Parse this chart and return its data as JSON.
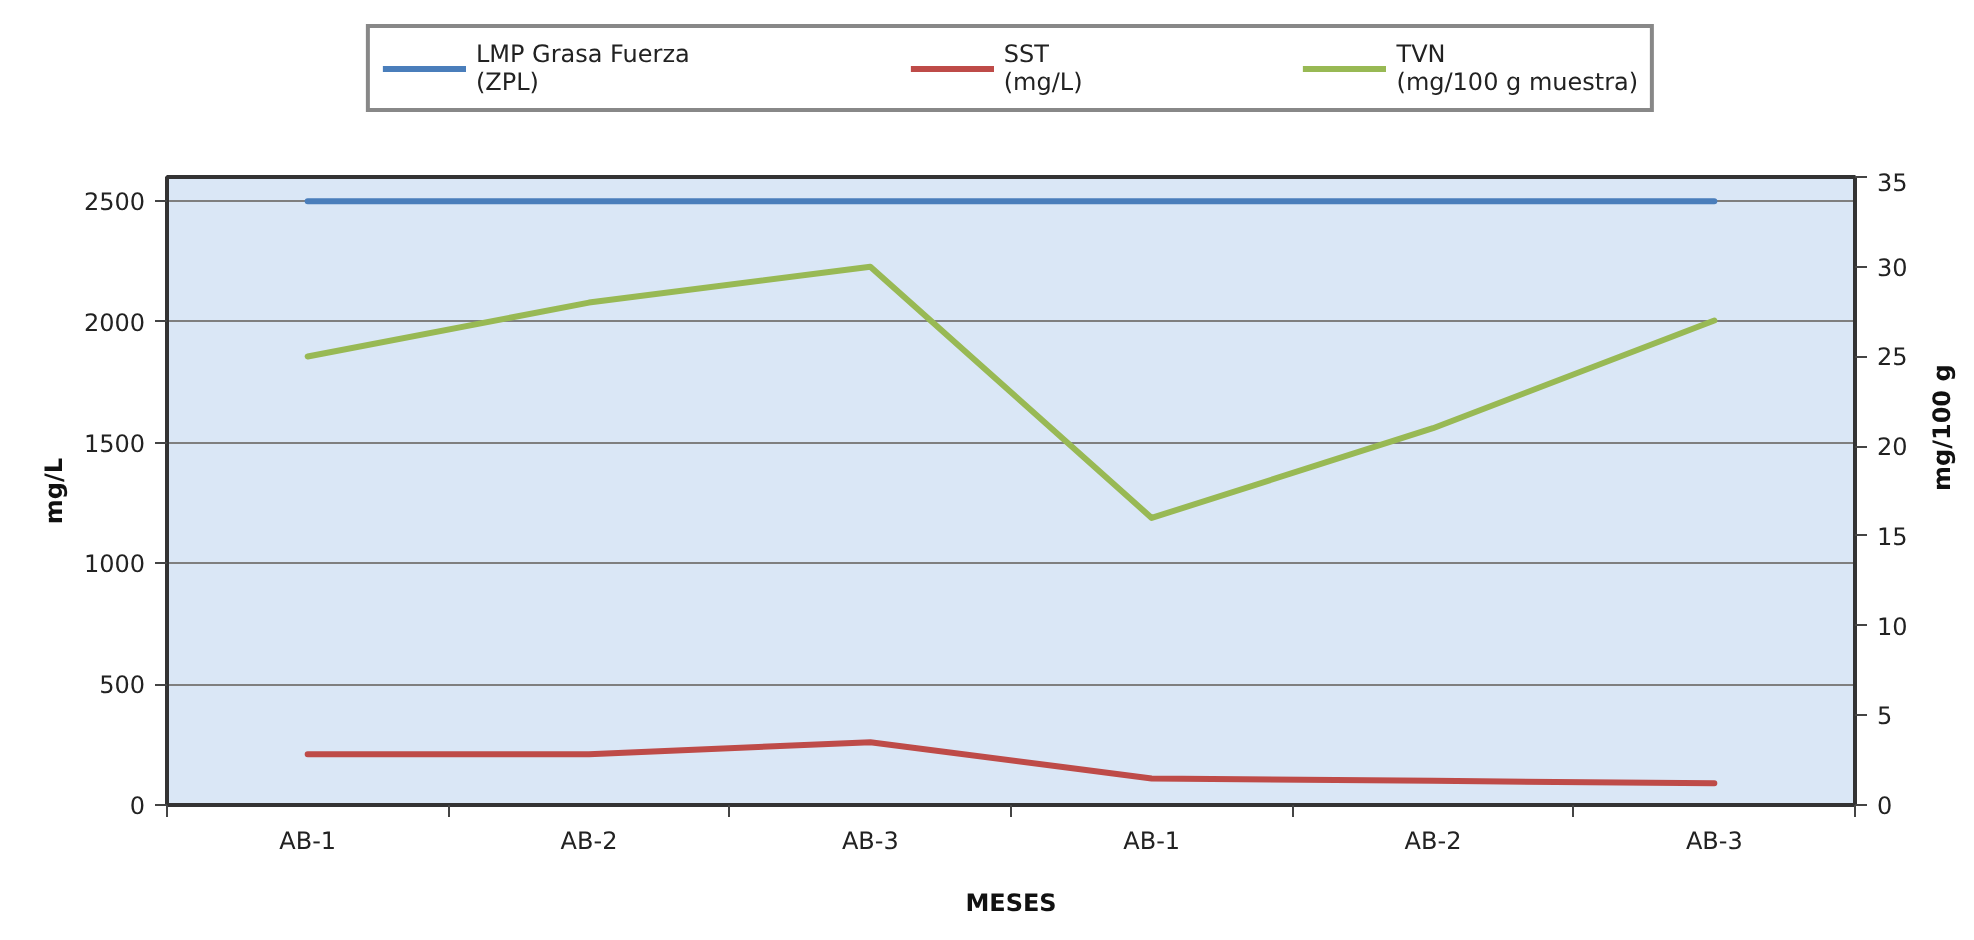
{
  "chart_data": {
    "type": "line",
    "xlabel": "MESES",
    "ylabel": "mg/L",
    "y2label": "mg/100 g",
    "categories": [
      "AB-1",
      "AB-2",
      "AB-3",
      "AB-1",
      "AB-2",
      "AB-3"
    ],
    "series": [
      {
        "name": "LMP Grasa Fuerza\n(ZPL)",
        "color": "#4a7ebb",
        "values": [
          2500,
          2500,
          2500,
          2500,
          2500,
          2500
        ]
      },
      {
        "name": "SST\n(mg/L)",
        "color": "#be4b48",
        "values": [
          210,
          210,
          260,
          110,
          100,
          90
        ]
      },
      {
        "name": "TVN\n(mg/100 g muestra)",
        "color": "#98b954",
        "values": [
          25,
          28,
          30,
          16,
          21,
          27
        ],
        "axis": "y2"
      }
    ],
    "ylim": [
      0,
      2600
    ],
    "yticks": [
      0,
      500,
      1000,
      1500,
      2000,
      2500
    ],
    "y2lim": [
      0,
      35
    ],
    "y2ticks": [
      0,
      5,
      10,
      15,
      20,
      25,
      30,
      35
    ],
    "grid": "y",
    "legend": "top",
    "line_style": "solid"
  }
}
